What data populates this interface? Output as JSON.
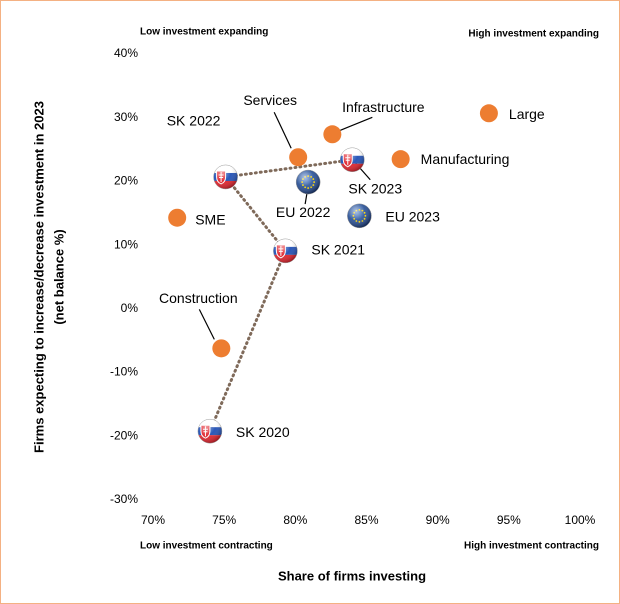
{
  "chart_data": {
    "type": "scatter",
    "x_label": "Share of firms investing",
    "y_label": "Firms expecting to increase/decrease investment in 2023",
    "y_label_sub": "(net balance %)",
    "quadrant_labels": {
      "top_left": "Low investment expanding",
      "top_right": "High investment expanding",
      "bottom_left": "Low investment contracting",
      "bottom_right": "High investment contracting"
    },
    "xlim": [
      70,
      100
    ],
    "xticks": [
      {
        "value": 70,
        "label": "70%"
      },
      {
        "value": 75,
        "label": "75%"
      },
      {
        "value": 80,
        "label": "80%"
      },
      {
        "value": 85,
        "label": "85%"
      },
      {
        "value": 90,
        "label": "90%"
      },
      {
        "value": 95,
        "label": "95%"
      },
      {
        "value": 100,
        "label": "100%"
      }
    ],
    "ylim": [
      -30,
      40
    ],
    "yticks": [
      {
        "value": -30,
        "label": "-30%"
      },
      {
        "value": -20,
        "label": "-20%"
      },
      {
        "value": -10,
        "label": "-10%"
      },
      {
        "value": 0,
        "label": "0%"
      },
      {
        "value": 10,
        "label": "10%"
      },
      {
        "value": 20,
        "label": "20%"
      },
      {
        "value": 30,
        "label": "30%"
      },
      {
        "value": 40,
        "label": "40%"
      }
    ],
    "grid": false,
    "series": [
      {
        "marker": "circle",
        "color": "#ed7d31",
        "labels": [
          "Large",
          "Manufacturing",
          "Infrastructure",
          "Services",
          "SME",
          "Construction"
        ],
        "x": [
          93.6,
          87.4,
          82.6,
          80.2,
          71.7,
          74.8
        ],
        "y": [
          30.7,
          23.5,
          27.4,
          23.8,
          14.3,
          -6.2
        ]
      },
      {
        "marker": "flag-sk",
        "connect": true,
        "line_color": "#7f6a5a",
        "labels": [
          "SK 2020",
          "SK 2021",
          "SK 2022",
          "SK 2023"
        ],
        "x": [
          74.0,
          79.3,
          75.1,
          84.0
        ],
        "y": [
          -19.2,
          9.1,
          20.7,
          23.4
        ]
      },
      {
        "marker": "flag-eu",
        "labels": [
          "EU 2022",
          "EU 2023"
        ],
        "x": [
          80.9,
          84.5
        ],
        "y": [
          19.9,
          14.6
        ]
      }
    ]
  }
}
